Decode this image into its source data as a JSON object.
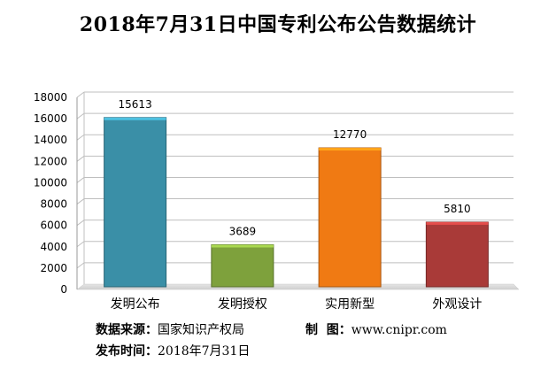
{
  "chart_data": {
    "type": "bar",
    "title": "2018年7月31日中国专利公布公告数据统计",
    "categories": [
      "发明公布",
      "发明授权",
      "实用新型",
      "外观设计"
    ],
    "values": [
      15613,
      3689,
      12770,
      5810
    ],
    "colors": [
      "#3a8fa7",
      "#7ea13c",
      "#f07a13",
      "#a93a38"
    ],
    "yticks": [
      0,
      2000,
      4000,
      6000,
      8000,
      10000,
      12000,
      14000,
      16000,
      18000
    ],
    "ylim": [
      0,
      18000
    ],
    "grid": true,
    "legend": "none"
  },
  "footer": {
    "source_label": "数据来源：",
    "source_value": "国家知识产权局",
    "maker_label": "制  图：",
    "maker_value": "www.cnipr.com",
    "date_label": "发布时间：",
    "date_value": "2018年7月31日"
  }
}
